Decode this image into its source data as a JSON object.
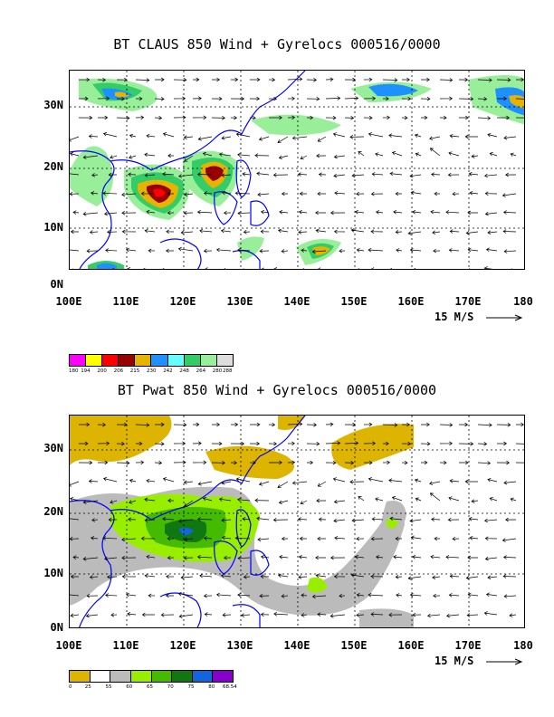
{
  "panel1": {
    "title": "BT CLAUS 850 Wind + Gyrelocs 000516/0000",
    "y_labels": [
      "30N",
      "20N",
      "10N",
      "0N"
    ],
    "x_labels": [
      "100E",
      "110E",
      "120E",
      "130E",
      "140E",
      "150E",
      "160E",
      "170E",
      "180"
    ],
    "scale_label": "15 M/S"
  },
  "colorbar1": {
    "colors": [
      "#ff00ff",
      "#ffff00",
      "#ff0000",
      "#990000",
      "#e6b400",
      "#1e90ff",
      "#66ffff",
      "#33cc66",
      "#99ee99",
      "#dddddd"
    ],
    "labels": [
      "180",
      "194",
      "200",
      "206",
      "215",
      "230",
      "242",
      "248",
      "264",
      "280",
      "288"
    ]
  },
  "panel2": {
    "title": "BT Pwat 850 Wind + Gyrelocs 000516/0000",
    "y_labels": [
      "30N",
      "20N",
      "10N",
      "0N"
    ],
    "x_labels": [
      "100E",
      "110E",
      "120E",
      "130E",
      "140E",
      "150E",
      "160E",
      "170E",
      "180"
    ],
    "scale_label": "15 M/S"
  },
  "colorbar2": {
    "colors": [
      "#ddb400",
      "#ffffff",
      "#bbbbbb",
      "#99ee00",
      "#44bb00",
      "#117711",
      "#1166dd",
      "#8800cc"
    ],
    "labels": [
      "0",
      "25",
      "55",
      "60",
      "65",
      "70",
      "75",
      "80",
      "68.54"
    ]
  }
}
